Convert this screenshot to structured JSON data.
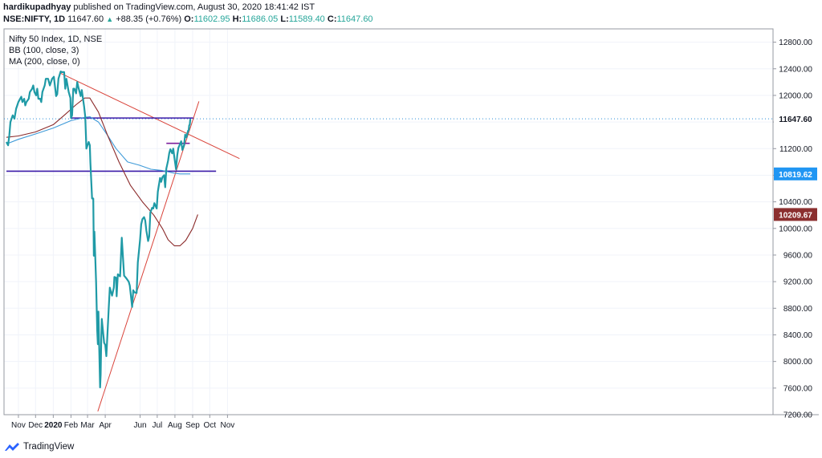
{
  "header": {
    "author": "hardikupadhyay",
    "published_text": "published on TradingView.com, August 30, 2020 18:41:42 IST",
    "symbol": "NSE:NIFTY, 1D",
    "last": "11647.60",
    "change": "+88.35 (+0.76%)",
    "o_label": "O:",
    "o": "11602.95",
    "h_label": "H:",
    "h": "11686.05",
    "l_label": "L:",
    "l": "11589.40",
    "c_label": "C:",
    "c": "11647.60"
  },
  "legend": {
    "line1": "Nifty 50 Index, 1D, NSE",
    "line2": "BB (100, close, 3)",
    "line3": "MA (200, close, 0)"
  },
  "footer": {
    "brand": "TradingView"
  },
  "colors": {
    "price": "#1f9aa6",
    "bb": "#3e9ad8",
    "ma": "#8b2a2a",
    "trend": "#d9433a",
    "level": "#3a1aa8",
    "short_level": "#7c1f9c",
    "last_label_bg": "#ffffff",
    "bb_label_bg": "#2196f3",
    "ma_label_bg": "#8b2f2f"
  },
  "chart_data": {
    "type": "line",
    "title": "Nifty 50 Index, 1D, NSE",
    "ylim": [
      7200,
      13000
    ],
    "y_ticks": [
      7200,
      7600,
      8000,
      8400,
      8800,
      9200,
      9600,
      10000,
      10400,
      10800,
      11200,
      11600,
      12000,
      12400,
      12800
    ],
    "y_tick_labels": [
      "7200.00",
      "7600.00",
      "8000.00",
      "8400.00",
      "8800.00",
      "9200.00",
      "9600.00",
      "10000.00",
      "10400.00",
      "10800.00",
      "11200.00",
      "11600.00",
      "12000.00",
      "12400.00",
      "12800.00"
    ],
    "x_ticks": [
      {
        "date": "2019-11-01",
        "label": "Nov"
      },
      {
        "date": "2019-12-01",
        "label": "Dec"
      },
      {
        "date": "2020-01-01",
        "label": "2020"
      },
      {
        "date": "2020-02-01",
        "label": "Feb"
      },
      {
        "date": "2020-03-01",
        "label": "Mar"
      },
      {
        "date": "2020-04-01",
        "label": "Apr"
      },
      {
        "date": "2020-06-01",
        "label": "Jun"
      },
      {
        "date": "2020-07-01",
        "label": "Jul"
      },
      {
        "date": "2020-08-01",
        "label": "Aug"
      },
      {
        "date": "2020-09-01",
        "label": "Sep"
      },
      {
        "date": "2020-10-01",
        "label": "Oct"
      },
      {
        "date": "2020-11-01",
        "label": "Nov"
      }
    ],
    "price_labels": [
      {
        "value": 11647.6,
        "text": "11647.60",
        "style": "last"
      },
      {
        "value": 10819.62,
        "text": "10819.62",
        "style": "bb"
      },
      {
        "value": 10209.67,
        "text": "10209.67",
        "style": "ma"
      }
    ],
    "series": [
      {
        "name": "Nifty 50 Index",
        "points": [
          [
            "2019-10-11",
            11300
          ],
          [
            "2019-10-14",
            11250
          ],
          [
            "2019-10-16",
            11400
          ],
          [
            "2019-10-18",
            11600
          ],
          [
            "2019-10-22",
            11700
          ],
          [
            "2019-10-25",
            11650
          ],
          [
            "2019-10-28",
            11800
          ],
          [
            "2019-10-30",
            11850
          ],
          [
            "2019-11-01",
            11900
          ],
          [
            "2019-11-04",
            11950
          ],
          [
            "2019-11-06",
            11980
          ],
          [
            "2019-11-08",
            11900
          ],
          [
            "2019-11-11",
            11950
          ],
          [
            "2019-11-13",
            11850
          ],
          [
            "2019-11-15",
            11900
          ],
          [
            "2019-11-19",
            11950
          ],
          [
            "2019-11-21",
            12050
          ],
          [
            "2019-11-25",
            12100
          ],
          [
            "2019-11-27",
            12150
          ],
          [
            "2019-11-29",
            12050
          ],
          [
            "2019-12-02",
            12000
          ],
          [
            "2019-12-04",
            12100
          ],
          [
            "2019-12-06",
            11950
          ],
          [
            "2019-12-09",
            11950
          ],
          [
            "2019-12-11",
            11900
          ],
          [
            "2019-12-13",
            12050
          ],
          [
            "2019-12-17",
            12150
          ],
          [
            "2019-12-19",
            12250
          ],
          [
            "2019-12-23",
            12250
          ],
          [
            "2019-12-26",
            12150
          ],
          [
            "2019-12-30",
            12250
          ],
          [
            "2020-01-02",
            12280
          ],
          [
            "2020-01-06",
            11990
          ],
          [
            "2020-01-08",
            12020
          ],
          [
            "2020-01-10",
            12250
          ],
          [
            "2020-01-14",
            12360
          ],
          [
            "2020-01-16",
            12350
          ],
          [
            "2020-01-20",
            12350
          ],
          [
            "2020-01-22",
            12100
          ],
          [
            "2020-01-24",
            12250
          ],
          [
            "2020-01-28",
            12050
          ],
          [
            "2020-01-31",
            11960
          ],
          [
            "2020-02-01",
            11660
          ],
          [
            "2020-02-03",
            11700
          ],
          [
            "2020-02-05",
            12100
          ],
          [
            "2020-02-07",
            12100
          ],
          [
            "2020-02-10",
            12030
          ],
          [
            "2020-02-12",
            12200
          ],
          [
            "2020-02-14",
            12120
          ],
          [
            "2020-02-18",
            11990
          ],
          [
            "2020-02-20",
            12080
          ],
          [
            "2020-02-24",
            11830
          ],
          [
            "2020-02-26",
            11680
          ],
          [
            "2020-02-28",
            11200
          ],
          [
            "2020-03-03",
            11300
          ],
          [
            "2020-03-05",
            11250
          ],
          [
            "2020-03-06",
            10990
          ],
          [
            "2020-03-09",
            10450
          ],
          [
            "2020-03-11",
            10450
          ],
          [
            "2020-03-12",
            9590
          ],
          [
            "2020-03-13",
            9950
          ],
          [
            "2020-03-16",
            9200
          ],
          [
            "2020-03-18",
            8470
          ],
          [
            "2020-03-19",
            8260
          ],
          [
            "2020-03-20",
            8750
          ],
          [
            "2020-03-23",
            7610
          ],
          [
            "2020-03-24",
            7800
          ],
          [
            "2020-03-25",
            8320
          ],
          [
            "2020-03-26",
            8640
          ],
          [
            "2020-03-30",
            8280
          ],
          [
            "2020-04-01",
            8250
          ],
          [
            "2020-04-03",
            8080
          ],
          [
            "2020-04-07",
            8790
          ],
          [
            "2020-04-09",
            9110
          ],
          [
            "2020-04-13",
            8990
          ],
          [
            "2020-04-16",
            9110
          ],
          [
            "2020-04-17",
            9270
          ],
          [
            "2020-04-20",
            9260
          ],
          [
            "2020-04-21",
            8980
          ],
          [
            "2020-04-23",
            9310
          ],
          [
            "2020-04-27",
            9280
          ],
          [
            "2020-04-30",
            9860
          ],
          [
            "2020-05-04",
            9290
          ],
          [
            "2020-05-06",
            9270
          ],
          [
            "2020-05-08",
            9250
          ],
          [
            "2020-05-12",
            9200
          ],
          [
            "2020-05-14",
            9140
          ],
          [
            "2020-05-18",
            8820
          ],
          [
            "2020-05-20",
            9070
          ],
          [
            "2020-05-22",
            9040
          ],
          [
            "2020-05-26",
            9030
          ],
          [
            "2020-05-28",
            9490
          ],
          [
            "2020-06-01",
            9830
          ],
          [
            "2020-06-03",
            10060
          ],
          [
            "2020-06-05",
            10140
          ],
          [
            "2020-06-08",
            10170
          ],
          [
            "2020-06-10",
            10120
          ],
          [
            "2020-06-12",
            9970
          ],
          [
            "2020-06-15",
            9810
          ],
          [
            "2020-06-17",
            9880
          ],
          [
            "2020-06-19",
            10240
          ],
          [
            "2020-06-22",
            10310
          ],
          [
            "2020-06-24",
            10300
          ],
          [
            "2020-06-26",
            10380
          ],
          [
            "2020-06-30",
            10300
          ],
          [
            "2020-07-02",
            10550
          ],
          [
            "2020-07-06",
            10760
          ],
          [
            "2020-07-08",
            10700
          ],
          [
            "2020-07-10",
            10770
          ],
          [
            "2020-07-13",
            10800
          ],
          [
            "2020-07-15",
            10620
          ],
          [
            "2020-07-17",
            10900
          ],
          [
            "2020-07-20",
            11020
          ],
          [
            "2020-07-22",
            11130
          ],
          [
            "2020-07-24",
            11190
          ],
          [
            "2020-07-27",
            11130
          ],
          [
            "2020-07-29",
            11200
          ],
          [
            "2020-07-31",
            11070
          ],
          [
            "2020-08-03",
            10890
          ],
          [
            "2020-08-05",
            11100
          ],
          [
            "2020-08-07",
            11210
          ],
          [
            "2020-08-10",
            11270
          ],
          [
            "2020-08-12",
            11310
          ],
          [
            "2020-08-14",
            11180
          ],
          [
            "2020-08-17",
            11250
          ],
          [
            "2020-08-19",
            11410
          ],
          [
            "2020-08-21",
            11370
          ],
          [
            "2020-08-24",
            11470
          ],
          [
            "2020-08-25",
            11470
          ],
          [
            "2020-08-26",
            11550
          ],
          [
            "2020-08-27",
            11560
          ],
          [
            "2020-08-28",
            11647.6
          ]
        ]
      },
      {
        "name": "MA (200, close, 0)",
        "points": [
          [
            "2019-10-11",
            11370
          ],
          [
            "2019-11-01",
            11390
          ],
          [
            "2019-12-01",
            11450
          ],
          [
            "2020-01-01",
            11560
          ],
          [
            "2020-01-20",
            11700
          ],
          [
            "2020-02-10",
            11860
          ],
          [
            "2020-02-25",
            11960
          ],
          [
            "2020-03-05",
            11960
          ],
          [
            "2020-03-20",
            11750
          ],
          [
            "2020-04-05",
            11400
          ],
          [
            "2020-04-25",
            11000
          ],
          [
            "2020-05-15",
            10650
          ],
          [
            "2020-06-05",
            10400
          ],
          [
            "2020-06-25",
            10200
          ],
          [
            "2020-07-10",
            10000
          ],
          [
            "2020-07-20",
            9830
          ],
          [
            "2020-07-31",
            9740
          ],
          [
            "2020-08-10",
            9740
          ],
          [
            "2020-08-20",
            9820
          ],
          [
            "2020-09-01",
            10000
          ],
          [
            "2020-09-10",
            10209.67
          ]
        ]
      },
      {
        "name": "BB (100, close, 3)",
        "points": [
          [
            "2019-10-11",
            11270
          ],
          [
            "2019-11-01",
            11340
          ],
          [
            "2019-12-01",
            11420
          ],
          [
            "2020-01-01",
            11510
          ],
          [
            "2020-02-01",
            11620
          ],
          [
            "2020-02-25",
            11670
          ],
          [
            "2020-03-05",
            11680
          ],
          [
            "2020-03-20",
            11600
          ],
          [
            "2020-04-05",
            11400
          ],
          [
            "2020-04-20",
            11200
          ],
          [
            "2020-05-10",
            11000
          ],
          [
            "2020-05-31",
            10950
          ],
          [
            "2020-06-20",
            10890
          ],
          [
            "2020-07-10",
            10870
          ],
          [
            "2020-07-31",
            10830
          ],
          [
            "2020-08-10",
            10820
          ],
          [
            "2020-08-28",
            10819.62
          ]
        ]
      }
    ],
    "drawings": [
      {
        "kind": "trend",
        "from": [
          "2020-01-12",
          12340
        ],
        "to": [
          "2020-11-22",
          11050
        ]
      },
      {
        "kind": "trend",
        "from": [
          "2020-03-19",
          7250
        ],
        "to": [
          "2020-09-12",
          11910
        ]
      },
      {
        "kind": "level",
        "from": [
          "2020-02-01",
          11660
        ],
        "to": [
          "2020-09-02",
          11660
        ]
      },
      {
        "kind": "level",
        "from": [
          "2019-10-11",
          10860
        ],
        "to": [
          "2020-10-12",
          10860
        ]
      },
      {
        "kind": "short_level",
        "from": [
          "2020-07-17",
          11280
        ],
        "to": [
          "2020-08-27",
          11280
        ]
      }
    ]
  }
}
